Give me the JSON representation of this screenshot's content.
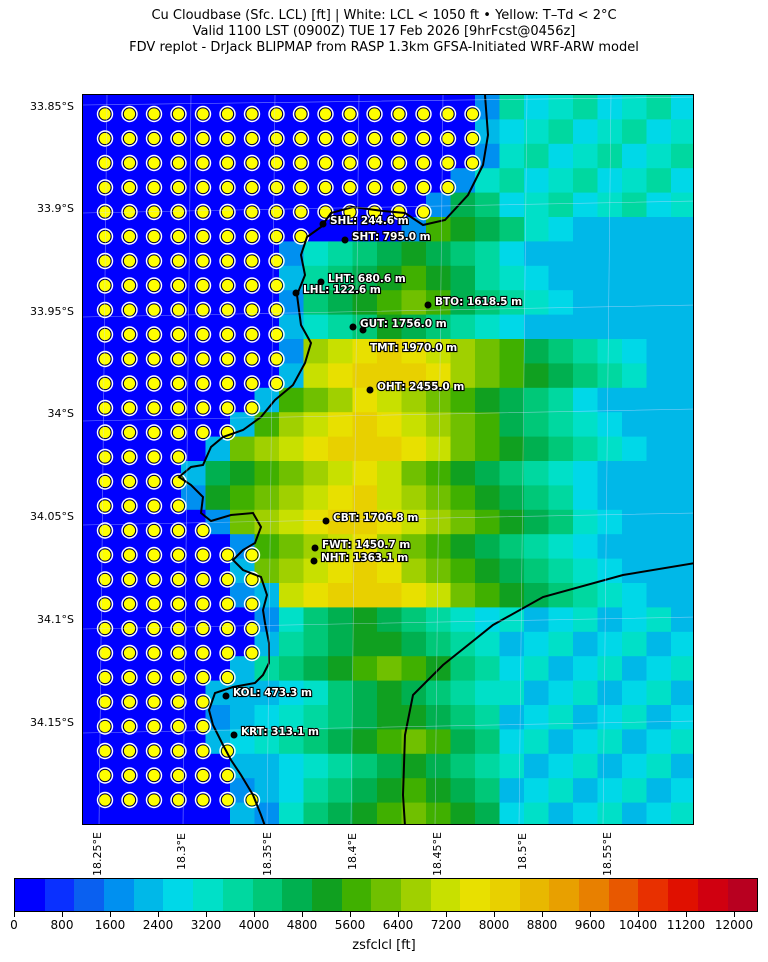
{
  "header": {
    "line1": "Cu Cloudbase (Sfc. LCL) [ft]  |  White: LCL < 1050 ft • Yellow: T–Td < 2°C",
    "line2": "Valid 1100 LST (0900Z) TUE 17 Feb 2026 [9hrFcst@0456z]",
    "line3": "FDV replot - DrJack BLIPMAP from RASP 1.3km GFSA-Initiated WRF-ARW model"
  },
  "axes": {
    "lat_ticks": [
      "33.85°S",
      "33.9°S",
      "33.95°S",
      "34°S",
      "34.05°S",
      "34.1°S",
      "34.15°S"
    ],
    "lon_ticks": [
      "18.25°E",
      "18.3°E",
      "18.35°E",
      "18.4°E",
      "18.45°E",
      "18.5°E",
      "18.55°E"
    ]
  },
  "colorbar": {
    "label": "zsfclcl [ft]",
    "ticks": [
      "0",
      "800",
      "1600",
      "2400",
      "3200",
      "4000",
      "4800",
      "5600",
      "6400",
      "7200",
      "8000",
      "8800",
      "9600",
      "10400",
      "11200",
      "12000"
    ],
    "colors": [
      "#0000ff",
      "#0a30ff",
      "#0a60f0",
      "#0090f0",
      "#00b8e8",
      "#00d8e8",
      "#00e0c8",
      "#00d8a0",
      "#00c878",
      "#00b050",
      "#10a020",
      "#40b000",
      "#70c000",
      "#a0d000",
      "#c8e000",
      "#e8e000",
      "#e8d000",
      "#e8b800",
      "#e8a000",
      "#e88000",
      "#e85800",
      "#e83000",
      "#e01000",
      "#d00010",
      "#b80020"
    ]
  },
  "sites": [
    {
      "id": "shl",
      "label": "SHL: 244.6 m"
    },
    {
      "id": "sht",
      "label": "SHT: 795.0 m"
    },
    {
      "id": "lht",
      "label": "LHT: 680.6 m"
    },
    {
      "id": "lhl",
      "label": "LHL: 122.6 m"
    },
    {
      "id": "bto",
      "label": "BTO: 1618.5 m"
    },
    {
      "id": "gut",
      "label": "GUT: 1756.0 m"
    },
    {
      "id": "tmt",
      "label": "TMT: 1970.0 m"
    },
    {
      "id": "oht",
      "label": "OHT: 2455.0 m"
    },
    {
      "id": "cbt",
      "label": "CBT: 1706.8 m"
    },
    {
      "id": "fwt",
      "label": "FWT: 1450.7 m"
    },
    {
      "id": "nht",
      "label": "NHT: 1363.1 m"
    },
    {
      "id": "kol",
      "label": "KOL: 473.3 m"
    },
    {
      "id": "krt",
      "label": "KRT: 313.1 m"
    }
  ],
  "legend_colors": {
    "low_lcl_marker": "#ffffff",
    "saturated_marker": "#ffff00",
    "sea": "#0000ff"
  }
}
